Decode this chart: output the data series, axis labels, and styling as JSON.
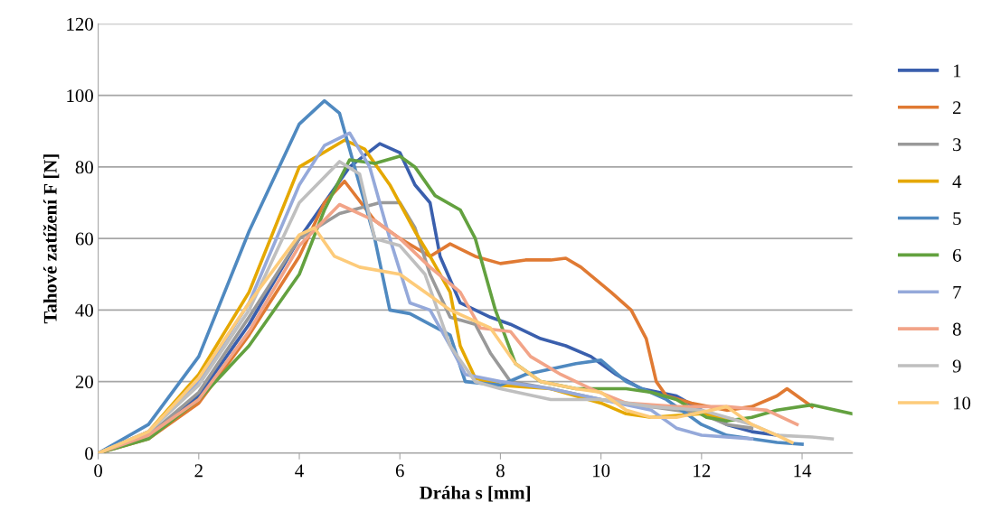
{
  "chart_data": {
    "type": "line",
    "xlabel": "Dráha s [mm]",
    "ylabel": "Tahové zatížení F [N]",
    "xlim": [
      0,
      15
    ],
    "xticks": [
      0,
      2,
      4,
      6,
      8,
      10,
      12,
      14
    ],
    "ylim": [
      0,
      120
    ],
    "yticks": [
      0,
      20,
      40,
      60,
      80,
      100,
      120
    ],
    "grid": "y",
    "legend": "right",
    "marker": "none",
    "line_style": "solid",
    "series": [
      {
        "name": "1",
        "color": "#3a5fad",
        "x": [
          0,
          1,
          2,
          3,
          4,
          4.5,
          5,
          5.6,
          6,
          6.3,
          6.6,
          6.8,
          7.2,
          7.8,
          8.2,
          8.8,
          9.3,
          9.8,
          10.3,
          10.8,
          11.5,
          12,
          12.5,
          13,
          13.5
        ],
        "values": [
          0,
          5,
          16,
          36,
          60,
          70,
          80,
          86.5,
          84,
          75,
          70,
          55,
          42,
          38,
          36,
          32,
          30,
          27,
          22,
          18,
          16,
          12,
          8,
          6,
          5
        ]
      },
      {
        "name": "2",
        "color": "#e07a33",
        "x": [
          0,
          1,
          2,
          3,
          4,
          4.5,
          4.9,
          5.5,
          6,
          6.6,
          7,
          7.5,
          8,
          8.5,
          9,
          9.3,
          9.6,
          10.2,
          10.6,
          10.9,
          11.1,
          11.3,
          11.8,
          12.5,
          13,
          13.5,
          13.7,
          14,
          14.2
        ],
        "values": [
          0,
          4,
          14,
          33,
          55,
          70,
          76,
          65,
          60,
          55,
          58.5,
          55,
          53,
          54,
          54,
          54.5,
          52,
          45,
          40,
          32,
          20,
          16,
          14,
          12,
          13,
          16,
          18,
          15,
          13
        ]
      },
      {
        "name": "3",
        "color": "#999999",
        "x": [
          0,
          1,
          2,
          3,
          4,
          4.8,
          5.6,
          6,
          6.3,
          6.6,
          7,
          7.5,
          7.8,
          8.2,
          9,
          10,
          11,
          12,
          12.5,
          13
        ],
        "values": [
          0,
          5,
          17,
          38,
          60,
          67,
          70,
          70,
          63,
          50,
          38,
          36,
          28,
          20,
          18,
          15,
          13,
          11,
          8,
          7
        ]
      },
      {
        "name": "4",
        "color": "#e5a800",
        "x": [
          0,
          1,
          2,
          3,
          4,
          4.9,
          5.3,
          5.8,
          6.3,
          6.6,
          7,
          7.2,
          7.5,
          8,
          9,
          10,
          10.5,
          11,
          12,
          12.8
        ],
        "values": [
          0,
          6,
          22,
          45,
          80,
          87.5,
          85,
          75,
          62,
          55,
          45,
          30,
          21,
          19,
          18,
          14,
          11,
          10,
          11,
          9
        ]
      },
      {
        "name": "5",
        "color": "#4f89c0",
        "x": [
          0,
          1,
          2,
          3,
          4,
          4.5,
          4.8,
          5.2,
          5.5,
          5.8,
          6.2,
          7,
          7.3,
          8,
          8.5,
          9.5,
          10,
          10.5,
          11.3,
          12,
          12.5,
          13,
          13.5,
          14
        ],
        "values": [
          0,
          8,
          27,
          62,
          92,
          98.5,
          95,
          75,
          60,
          40,
          39,
          33,
          20,
          19,
          22,
          25,
          26,
          20,
          15,
          8,
          5,
          4,
          3,
          2.5
        ]
      },
      {
        "name": "6",
        "color": "#63a13f",
        "x": [
          0,
          1,
          2,
          3,
          4,
          4.5,
          5,
          5.5,
          6,
          6.3,
          6.7,
          7.2,
          7.5,
          7.9,
          8.3,
          8.8,
          9.5,
          10.5,
          11,
          11.5,
          12.1,
          12.5,
          13,
          13.5,
          14.2,
          15
        ],
        "values": [
          0,
          4,
          15,
          30,
          50,
          68,
          82,
          81,
          83,
          80,
          72,
          68,
          60,
          40,
          25,
          20,
          18,
          18,
          17,
          15,
          10,
          9,
          10,
          12,
          13.5,
          11
        ]
      },
      {
        "name": "7",
        "color": "#95a9da",
        "x": [
          0,
          1,
          2,
          3,
          4,
          4.5,
          5,
          5.4,
          5.8,
          6.2,
          6.6,
          7,
          7.3,
          8,
          9,
          10,
          11,
          11.5,
          12,
          13
        ],
        "values": [
          0,
          6,
          20,
          42,
          75,
          86,
          89.5,
          80,
          60,
          42,
          40,
          30,
          22,
          20,
          18,
          15,
          12,
          7,
          5,
          4
        ]
      },
      {
        "name": "8",
        "color": "#f2a488",
        "x": [
          0,
          1,
          2,
          3,
          4,
          4.8,
          5.5,
          6,
          6.6,
          7.2,
          7.6,
          8.2,
          8.6,
          9.2,
          9.8,
          10.5,
          11.5,
          12.5,
          13.3,
          13.9
        ],
        "values": [
          0,
          5,
          15,
          34,
          58,
          69.5,
          65,
          60,
          52,
          45,
          35,
          34,
          27,
          22,
          18,
          14,
          13,
          13,
          12,
          8
        ]
      },
      {
        "name": "9",
        "color": "#bfbfbf",
        "x": [
          0,
          1,
          2,
          3,
          4,
          4.8,
          5.2,
          5.5,
          6,
          6.5,
          7,
          7.5,
          8,
          9,
          10,
          11,
          12,
          13,
          13.5,
          14.2,
          14.6
        ],
        "values": [
          0,
          6,
          19,
          40,
          70,
          81.5,
          78,
          60,
          58,
          50,
          30,
          20,
          18,
          15,
          15,
          13,
          12,
          8,
          5,
          4.5,
          4
        ]
      },
      {
        "name": "10",
        "color": "#fdcb7a",
        "x": [
          0,
          1,
          2,
          3,
          4,
          4.3,
          4.7,
          5.2,
          6,
          6.5,
          7,
          7.8,
          8.3,
          8.8,
          9.5,
          10,
          10.5,
          11,
          11.5,
          12.2,
          12.5,
          13,
          13.5,
          13.8
        ],
        "values": [
          0,
          6,
          21,
          42,
          61,
          63,
          55,
          52,
          50,
          45,
          40,
          35,
          25,
          20,
          18,
          17,
          12,
          10,
          10,
          12,
          13,
          8,
          5,
          3
        ]
      }
    ]
  }
}
